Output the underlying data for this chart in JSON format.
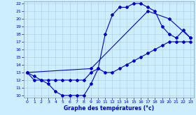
{
  "bg_color": "#cceeff",
  "line_color": "#0000cc",
  "grid_color": "#aaccdd",
  "xlabel": "Graphe des températures (°c)",
  "xlim": [
    -0.5,
    23.5
  ],
  "ylim": [
    9.7,
    22.3
  ],
  "yticks": [
    10,
    11,
    12,
    13,
    14,
    15,
    16,
    17,
    18,
    19,
    20,
    21,
    22
  ],
  "xticks": [
    0,
    1,
    2,
    3,
    4,
    5,
    6,
    7,
    8,
    9,
    10,
    11,
    12,
    13,
    14,
    15,
    16,
    17,
    18,
    19,
    20,
    21,
    22,
    23
  ],
  "line1": {
    "x": [
      0,
      1,
      2,
      3,
      4,
      5,
      6,
      7,
      8,
      9,
      10,
      11,
      12,
      13,
      14,
      15,
      16,
      17,
      18,
      19,
      20,
      21,
      22,
      23
    ],
    "y": [
      13,
      12,
      12,
      11.5,
      10.5,
      10,
      10,
      10,
      10,
      11.5,
      13.5,
      18,
      20.5,
      21.5,
      21.5,
      22,
      22,
      21.5,
      21,
      19,
      18,
      17.5,
      18.5,
      17.5
    ]
  },
  "line2": {
    "x": [
      0,
      9,
      17,
      20,
      23
    ],
    "y": [
      13,
      13.5,
      21,
      20,
      17.5
    ]
  },
  "line3": {
    "x": [
      0,
      1,
      2,
      3,
      4,
      5,
      6,
      7,
      8,
      9,
      10,
      11,
      12,
      13,
      14,
      15,
      16,
      17,
      18,
      19,
      20,
      21,
      22,
      23
    ],
    "y": [
      13,
      12.5,
      12,
      12,
      12,
      12,
      12,
      12,
      12,
      13,
      13.5,
      13,
      13,
      13.5,
      14,
      14.5,
      15,
      15.5,
      16,
      16.5,
      17,
      17,
      17,
      17
    ]
  }
}
